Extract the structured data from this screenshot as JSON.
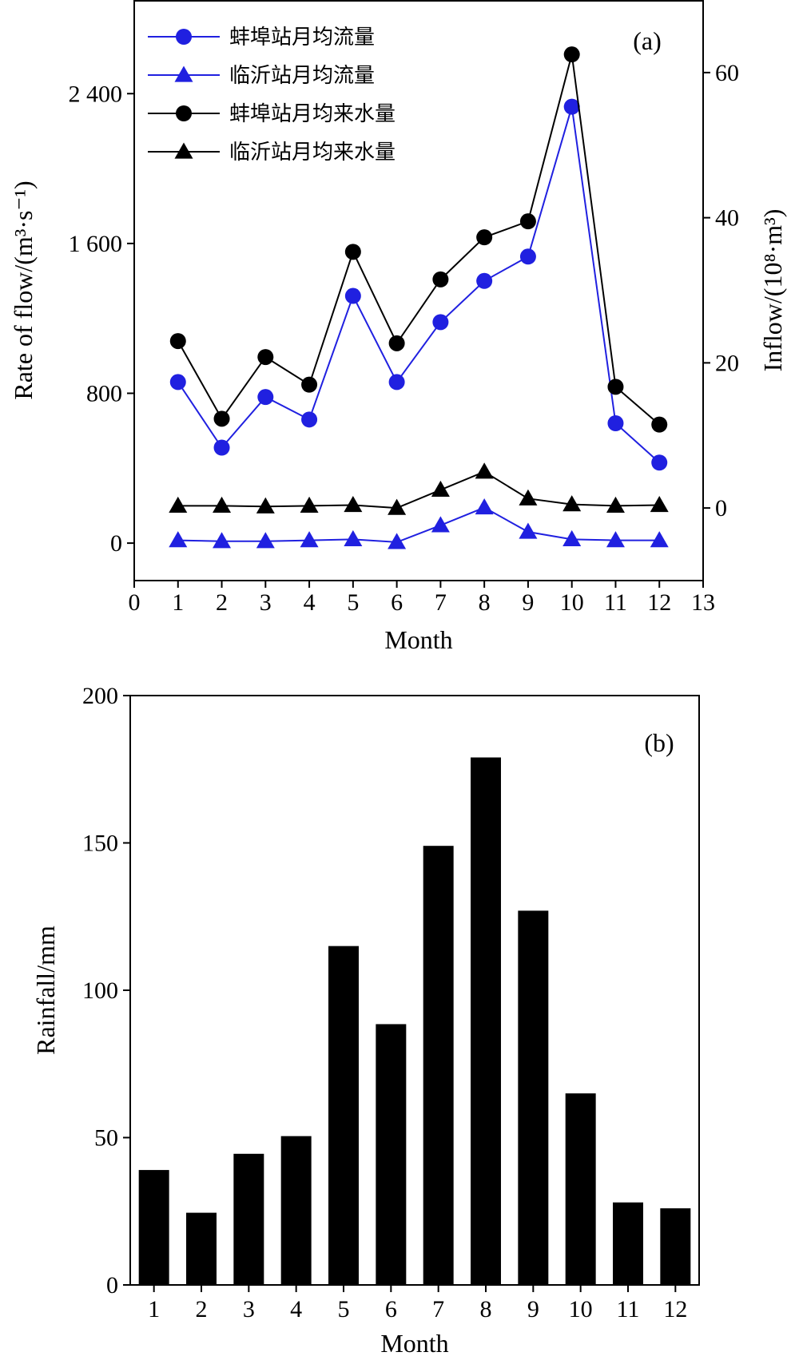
{
  "chart_data": [
    {
      "type": "line",
      "panel_label": "(a)",
      "xlabel": "Month",
      "ylabel_left": "Rate of flow/(m³·s⁻¹)",
      "ylabel_right": "Inflow/(10⁸·m³)",
      "xlim": [
        0,
        13
      ],
      "x_ticks": [
        "0",
        "1",
        "2",
        "3",
        "4",
        "5",
        "6",
        "7",
        "8",
        "9",
        "10",
        "11",
        "12",
        "13"
      ],
      "ylim_left": [
        -200,
        2900
      ],
      "y_ticks_left": [
        {
          "v": 0,
          "label": "0"
        },
        {
          "v": 800,
          "label": "800"
        },
        {
          "v": 1600,
          "label": "1 600"
        },
        {
          "v": 2400,
          "label": "2 400"
        }
      ],
      "ylim_right": [
        -10,
        70
      ],
      "y_ticks_right": [
        {
          "v": 0,
          "label": "0"
        },
        {
          "v": 20,
          "label": "20"
        },
        {
          "v": 40,
          "label": "40"
        },
        {
          "v": 60,
          "label": "60"
        }
      ],
      "legend_position": "top-left",
      "x": [
        1,
        2,
        3,
        4,
        5,
        6,
        7,
        8,
        9,
        10,
        11,
        12
      ],
      "series": [
        {
          "name": "蚌埠站月均流量",
          "axis": "left",
          "color": "#2020e0",
          "marker": "circle",
          "values": [
            860,
            510,
            780,
            660,
            1320,
            860,
            1180,
            1400,
            1530,
            2330,
            640,
            430
          ]
        },
        {
          "name": "临沂站月均流量",
          "axis": "left",
          "color": "#2020e0",
          "marker": "triangle",
          "values": [
            15,
            10,
            10,
            15,
            20,
            5,
            95,
            190,
            60,
            20,
            15,
            15
          ]
        },
        {
          "name": "蚌埠站月均来水量",
          "axis": "right",
          "color": "#000000",
          "marker": "circle",
          "values": [
            23,
            12.3,
            20.8,
            17,
            35.3,
            22.7,
            31.5,
            37.3,
            39.5,
            62.5,
            16.7,
            11.5
          ]
        },
        {
          "name": "临沂站月均来水量",
          "axis": "right",
          "color": "#000000",
          "marker": "triangle",
          "values": [
            0.3,
            0.3,
            0.2,
            0.3,
            0.4,
            0,
            2.5,
            5,
            1.3,
            0.5,
            0.3,
            0.4
          ]
        }
      ]
    },
    {
      "type": "bar",
      "panel_label": "(b)",
      "xlabel": "Month",
      "ylabel": "Rainfall/mm",
      "ylim": [
        0,
        200
      ],
      "y_ticks": [
        0,
        50,
        100,
        150,
        200
      ],
      "categories": [
        "1",
        "2",
        "3",
        "4",
        "5",
        "6",
        "7",
        "8",
        "9",
        "10",
        "11",
        "12"
      ],
      "values": [
        39,
        24.5,
        44.5,
        50.5,
        115,
        88.5,
        149,
        179,
        127,
        65,
        28,
        26
      ],
      "color": "#000000"
    }
  ]
}
